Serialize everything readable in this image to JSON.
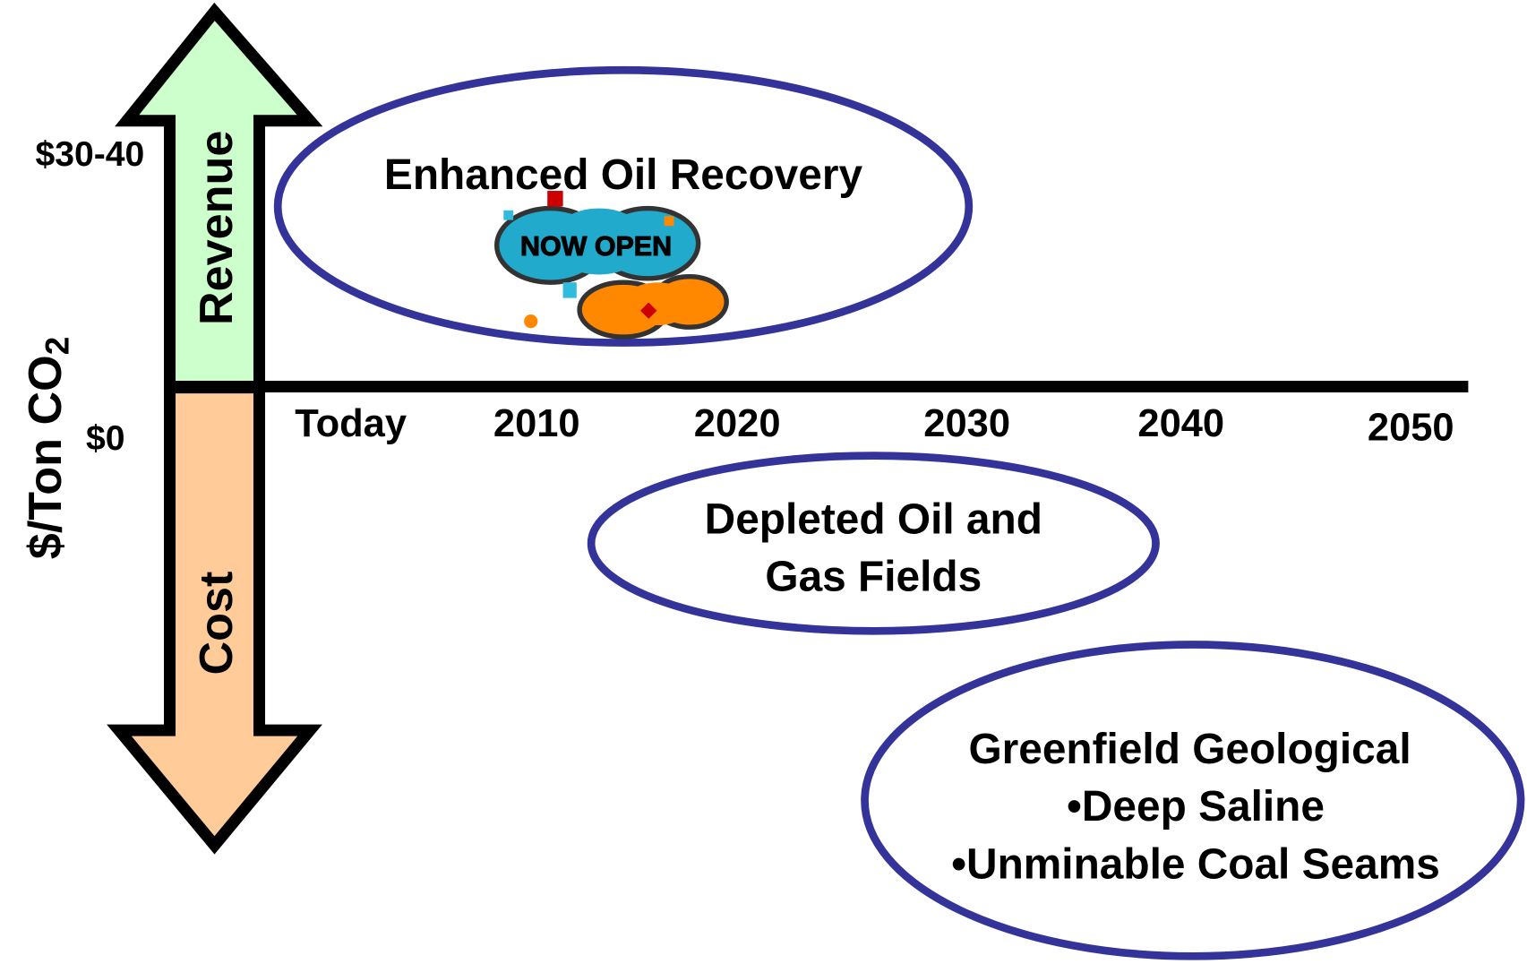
{
  "axis": {
    "label": "$/Ton CO",
    "label_subscript": "2",
    "ticks": [
      "$30-40",
      "$0"
    ],
    "arrow_up": "Revenue",
    "arrow_down": "Cost"
  },
  "timeline": [
    "Today",
    "2010",
    "2020",
    "2030",
    "2040",
    "2050"
  ],
  "regions": [
    {
      "label_lines": [
        "Enhanced Oil Recovery"
      ]
    },
    {
      "label_lines": [
        "Depleted Oil and",
        "Gas Fields"
      ]
    },
    {
      "label_lines": [
        "Greenfield Geological",
        "•Deep Saline",
        "•Unminable Coal Seams"
      ]
    }
  ],
  "sign": "NOW OPEN"
}
